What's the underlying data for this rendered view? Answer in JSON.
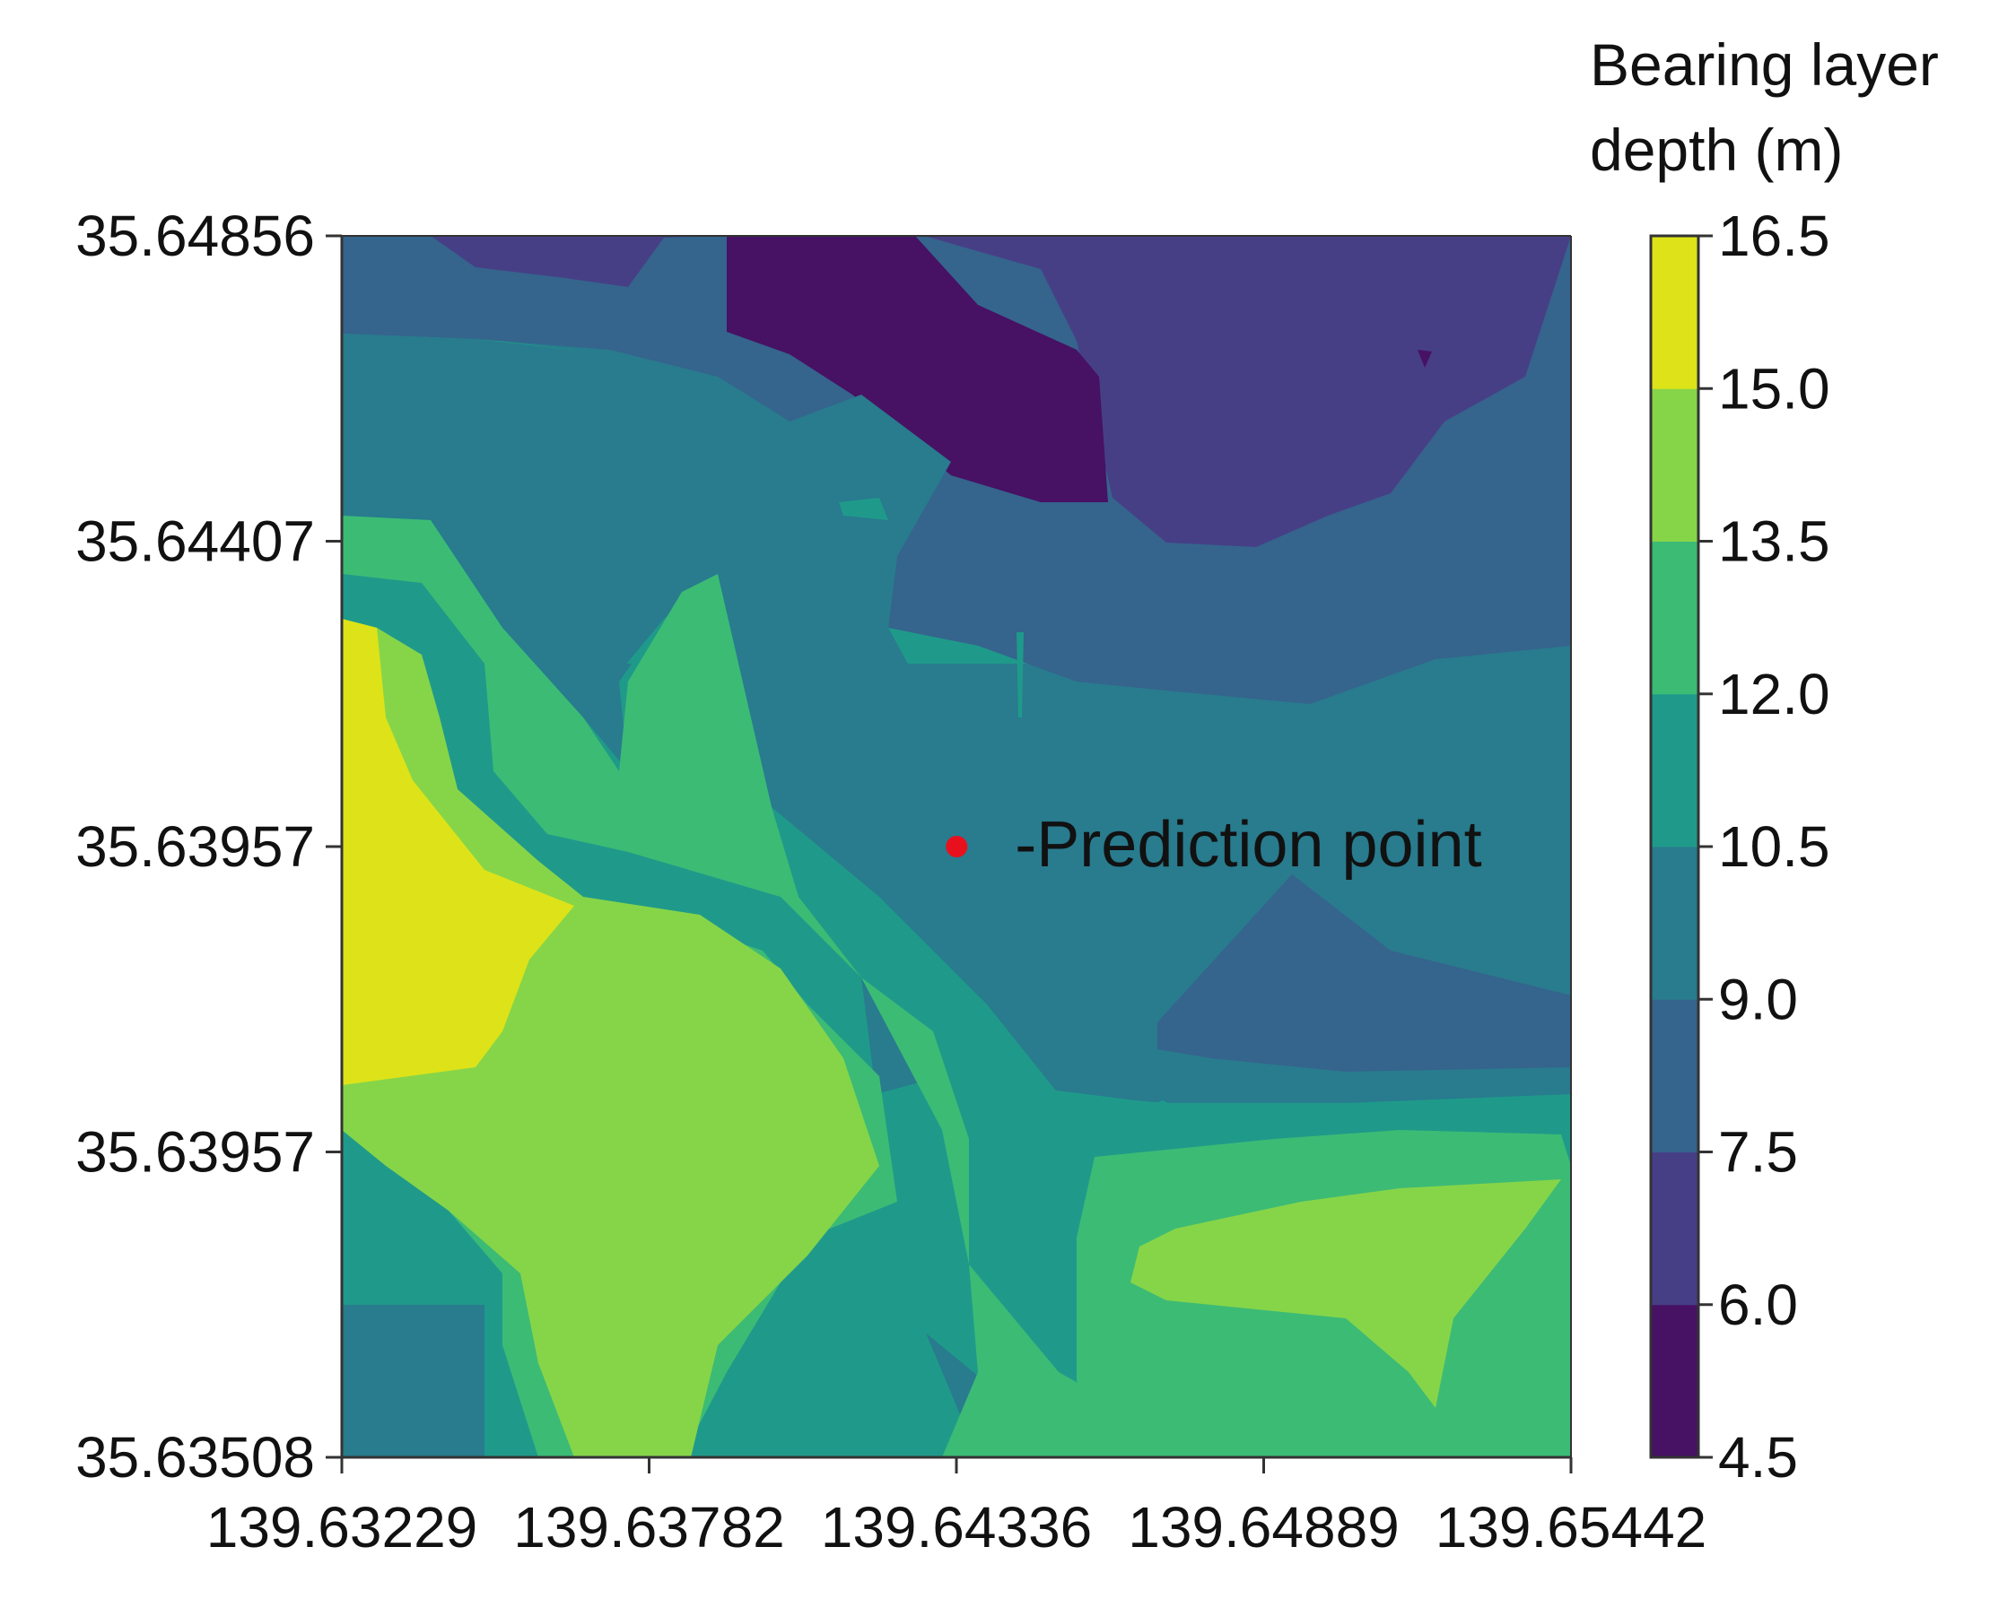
{
  "chart_data": {
    "type": "heatmap",
    "subtype": "filled-contour",
    "title": "",
    "xlabel": "",
    "ylabel": "",
    "x_ticks": [
      "139.63229",
      "139.63782",
      "139.64336",
      "139.64889",
      "139.65442"
    ],
    "y_ticks": [
      "35.63508",
      "35.63957",
      "35.63957",
      "35.64407",
      "35.64856"
    ],
    "xlim": [
      139.63229,
      139.65442
    ],
    "ylim": [
      35.63508,
      35.64856
    ],
    "colorbar": {
      "title_lines": [
        "Bearing layer",
        "depth (m)"
      ],
      "levels": [
        4.5,
        6.0,
        7.5,
        9.0,
        10.5,
        12.0,
        13.5,
        15.0,
        16.5
      ],
      "level_labels": [
        "4.5",
        "6.0",
        "7.5",
        "9.0",
        "10.5",
        "12.0",
        "13.5",
        "15.0",
        "16.5"
      ],
      "colors": [
        "#471164",
        "#463f86",
        "#35648d",
        "#297b8e",
        "#1f9a8a",
        "#3cbb75",
        "#86d549",
        "#dde318"
      ]
    },
    "annotations": [
      {
        "text": "-Prediction point",
        "x": 139.64336,
        "y": 35.64182,
        "marker_color": "#e8101c"
      }
    ],
    "grid": false,
    "legend": "colorbar-right"
  }
}
